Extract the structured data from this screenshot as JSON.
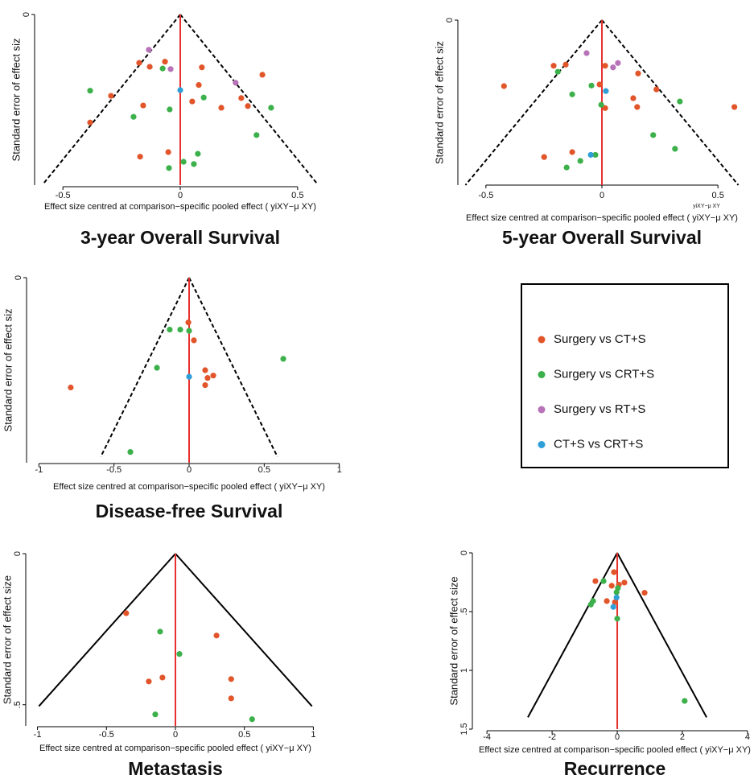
{
  "chart_data": [
    {
      "type": "scatter",
      "title": "3-year Overall Survival",
      "x_label": "Effect size centred at comparison−specific pooled effect ( yiXY−μ XY)",
      "y_label": "Standard error of effect siz",
      "xlim": [
        -0.6,
        0.6
      ],
      "ylim": [
        0,
        0.3
      ],
      "xticks": [
        -0.5,
        0,
        0.5
      ],
      "yticks": [
        0
      ],
      "funnel_style": "dashed",
      "series": [
        {
          "name": "Surgery vs CT+S",
          "color": "#e2552a",
          "x": [
            -0.175,
            -0.13,
            -0.065,
            0.092,
            0.35,
            0.079,
            -0.295,
            0.26,
            0.051,
            -0.158,
            0.288,
            0.175,
            -0.384,
            -0.051,
            -0.171
          ],
          "values": [
            0.085,
            0.092,
            0.083,
            0.093,
            0.106,
            0.124,
            0.143,
            0.147,
            0.153,
            0.16,
            0.161,
            0.164,
            0.19,
            0.242,
            0.25
          ]
        },
        {
          "name": "Surgery vs CRT+S",
          "color": "#3cb04a",
          "x": [
            -0.075,
            -0.384,
            0.1,
            0.387,
            -0.045,
            -0.199,
            0.325,
            0.075,
            0.014,
            0.058,
            -0.048
          ],
          "values": [
            0.095,
            0.134,
            0.146,
            0.164,
            0.167,
            0.18,
            0.212,
            0.245,
            0.259,
            0.263,
            0.27
          ]
        },
        {
          "name": "Surgery vs RT+S",
          "color": "#b872b8",
          "x": [
            -0.134,
            -0.041,
            0.236
          ],
          "values": [
            0.062,
            0.096,
            0.12
          ]
        },
        {
          "name": "CT+S vs CRT+S",
          "color": "#2f9fd8",
          "x": [
            0
          ],
          "values": [
            0.133
          ]
        }
      ]
    },
    {
      "type": "scatter",
      "title": "5-year Overall Survival",
      "x_label": "Effect size centred at comparison−specific pooled effect ( yiXY−μ XY)",
      "y_label": "Standard error of effect siz",
      "annotation": "yiXY−μ XY",
      "xlim": [
        -0.6,
        0.6
      ],
      "ylim": [
        0,
        0.3
      ],
      "xticks": [
        -0.5,
        0,
        0.5
      ],
      "yticks": [
        0
      ],
      "funnel_style": "dashed",
      "series": [
        {
          "name": "Surgery vs CT+S",
          "color": "#e2552a",
          "x": [
            -0.208,
            -0.156,
            0.014,
            0.156,
            -0.422,
            -0.01,
            0.235,
            0.135,
            0.571,
            0.014,
            0.152,
            -0.128,
            -0.249
          ],
          "values": [
            0.083,
            0.081,
            0.083,
            0.097,
            0.12,
            0.117,
            0.126,
            0.142,
            0.158,
            0.16,
            0.158,
            0.24,
            0.249
          ]
        },
        {
          "name": "Surgery vs CRT+S",
          "color": "#3cb04a",
          "x": [
            -0.19,
            -0.045,
            -0.128,
            -0.003,
            0.336,
            0.221,
            0.315,
            -0.028,
            -0.093,
            -0.152
          ],
          "values": [
            0.094,
            0.119,
            0.135,
            0.154,
            0.148,
            0.209,
            0.234,
            0.245,
            0.256,
            0.268
          ]
        },
        {
          "name": "Surgery vs RT+S",
          "color": "#b872b8",
          "x": [
            -0.066,
            0.069,
            0.048
          ],
          "values": [
            0.06,
            0.078,
            0.086
          ]
        },
        {
          "name": "CT+S vs CRT+S",
          "color": "#2f9fd8",
          "x": [
            0.017,
            -0.048
          ],
          "values": [
            0.129,
            0.245
          ]
        }
      ]
    },
    {
      "type": "scatter",
      "title": "Disease-free Survival",
      "x_label": "Effect size centred at comparison−specific pooled effect ( yiXY−μ XY)",
      "y_label": "Standard error of effect siz",
      "xlim": [
        -1.05,
        1.05
      ],
      "ylim": [
        0,
        0.31
      ],
      "xticks": [
        -1,
        -0.5,
        0,
        0.5,
        1
      ],
      "yticks": [
        0
      ],
      "funnel_style": "dashed",
      "series": [
        {
          "name": "Surgery vs CT+S",
          "color": "#e2552a",
          "x": [
            -0.005,
            0.032,
            0.107,
            0.161,
            0.123,
            0.107,
            -0.788
          ],
          "values": [
            0.075,
            0.105,
            0.155,
            0.164,
            0.168,
            0.18,
            0.184
          ]
        },
        {
          "name": "Surgery vs CRT+S",
          "color": "#3cb04a",
          "x": [
            -0.129,
            -0.059,
            0,
            0.627,
            -0.214,
            -0.391
          ],
          "values": [
            0.087,
            0.087,
            0.089,
            0.136,
            0.151,
            0.292
          ]
        },
        {
          "name": "CT+S vs CRT+S",
          "color": "#2f9fd8",
          "x": [
            0
          ],
          "values": [
            0.166
          ]
        }
      ]
    },
    {
      "type": "scatter",
      "title": "Metastasis",
      "x_label": "Effect size centred at comparison−specific pooled effect ( yiXY−μ XY)",
      "y_label": "Standard error of effect size",
      "xlim": [
        -1.05,
        1.05
      ],
      "ylim": [
        0,
        0.57
      ],
      "xticks": [
        -1,
        -0.5,
        0,
        0.5,
        1
      ],
      "yticks": [
        0,
        {
          "value": 0.5,
          "label": ".5"
        }
      ],
      "funnel_style": "solid",
      "series": [
        {
          "name": "Surgery vs CT+S",
          "color": "#e2552a",
          "x": [
            -0.357,
            0.298,
            -0.094,
            -0.193,
            0.404,
            0.404
          ],
          "values": [
            0.197,
            0.271,
            0.41,
            0.423,
            0.415,
            0.479
          ]
        },
        {
          "name": "Surgery vs CRT+S",
          "color": "#3cb04a",
          "x": [
            -0.111,
            0.029,
            -0.146,
            0.556
          ],
          "values": [
            0.258,
            0.332,
            0.532,
            0.548
          ]
        }
      ]
    },
    {
      "type": "scatter",
      "title": "Recurrence",
      "x_label": "Effect size centred at comparison−specific pooled effect ( yiXY−μ XY)",
      "y_label": "Standard error of effect size",
      "xlim": [
        -4.3,
        4.15
      ],
      "ylim": [
        0,
        1.5
      ],
      "xticks": [
        -4,
        -2,
        0,
        2,
        4
      ],
      "yticks": [
        0,
        {
          "value": 0.5,
          "label": ".5"
        },
        1,
        1.5
      ],
      "funnel_style": "solid",
      "series": [
        {
          "name": "Surgery vs CT+S",
          "color": "#e2552a",
          "x": [
            -0.1,
            -0.67,
            0.22,
            -0.17,
            0.05,
            0.84,
            -0.32,
            -0.07
          ],
          "values": [
            0.164,
            0.24,
            0.253,
            0.28,
            0.27,
            0.34,
            0.41,
            0.42
          ]
        },
        {
          "name": "Surgery vs CRT+S",
          "color": "#3cb04a",
          "x": [
            -0.42,
            0.02,
            -0.02,
            -0.74,
            -0.81,
            0,
            2.07
          ],
          "values": [
            0.24,
            0.3,
            0.335,
            0.41,
            0.44,
            0.56,
            1.26
          ]
        },
        {
          "name": "CT+S vs CRT+S",
          "color": "#2f9fd8",
          "x": [
            -0.02,
            -0.12
          ],
          "values": [
            0.38,
            0.46
          ]
        }
      ]
    }
  ]
}
